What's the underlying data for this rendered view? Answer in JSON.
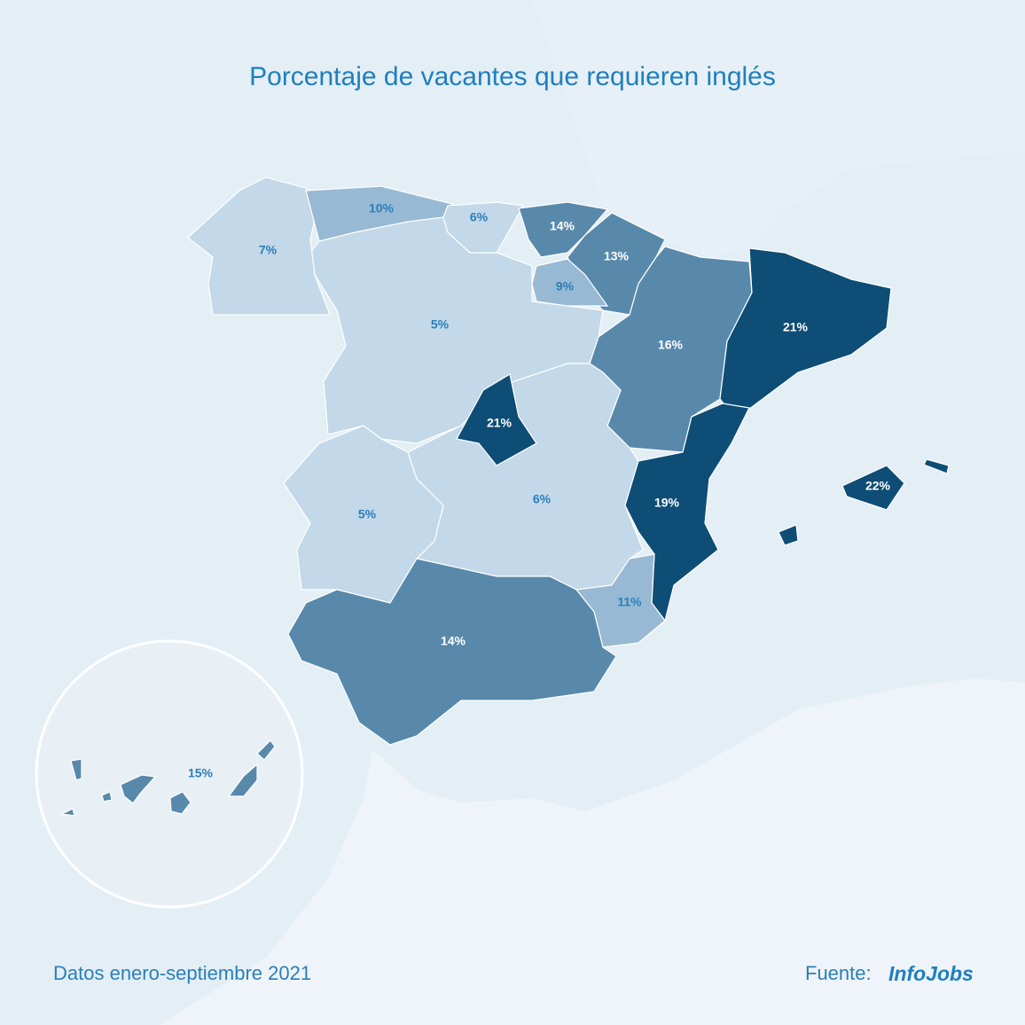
{
  "title": "Porcentaje de vacantes que requieren inglés",
  "regions": [
    {
      "label": "7%",
      "color": "#c3d8e8"
    },
    {
      "label": "10%",
      "color": "#98b9d3"
    },
    {
      "label": "6%",
      "color": "#c3d8e8"
    },
    {
      "label": "14%",
      "color": "#5889ab"
    },
    {
      "label": "13%",
      "color": "#5889ab"
    },
    {
      "label": "9%",
      "color": "#98b9d3"
    },
    {
      "label": "5%",
      "color": "#c3d8e8"
    },
    {
      "label": "16%",
      "color": "#5889ab"
    },
    {
      "label": "21%",
      "color": "#0e4d75"
    },
    {
      "label": "21%",
      "color": "#0e4d75"
    },
    {
      "label": "5%",
      "color": "#c3d8e8"
    },
    {
      "label": "6%",
      "color": "#c3d8e8"
    },
    {
      "label": "19%",
      "color": "#0e4d75"
    },
    {
      "label": "22%",
      "color": "#0e4d75"
    },
    {
      "label": "11%",
      "color": "#98b9d3"
    },
    {
      "label": "14%",
      "color": "#5889ab"
    },
    {
      "label": "15%",
      "color": "#5889ab"
    }
  ],
  "footer": {
    "note": "Datos enero-septiembre 2021",
    "source_label": "Fuente:",
    "source_brand": "InfoJobs"
  }
}
